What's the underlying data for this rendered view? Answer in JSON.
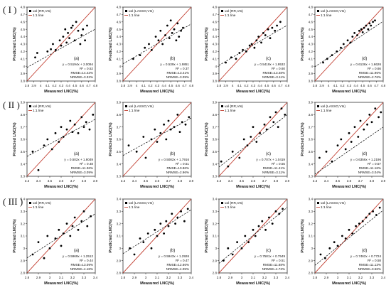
{
  "figure": {
    "row_labels": [
      "( I )",
      "( II )",
      "( III )"
    ],
    "common_axis": {
      "xlabel": "Measured LNC(%)",
      "ylabel": "Predicted LNC(%)"
    },
    "line_legend": "1:1 line",
    "colors": {
      "points": "#000000",
      "fit_line": "#000000",
      "one_to_one": "#c0392b",
      "frame": "#333333"
    }
  },
  "chart_data": [
    {
      "type": "scatter",
      "row": "I",
      "panel_label": "(a)",
      "legend": "val (RR,VIs)",
      "xlabel": "Measured LNC(%)",
      "ylabel": "Predicted LNC(%)",
      "xlim": [
        3.8,
        4.8
      ],
      "ylim": [
        3.8,
        4.8
      ],
      "xticks": [
        3.8,
        3.9,
        4,
        4.1,
        4.2,
        4.3,
        4.4,
        4.5,
        4.6,
        4.7,
        4.8
      ],
      "yticks": [
        3.8,
        3.9,
        4,
        4.1,
        4.2,
        4.3,
        4.4,
        4.5,
        4.6,
        4.7,
        4.8
      ],
      "equation": "y = 0.5194x + 2.0094",
      "r2": "R² = 0.52",
      "rmse": "RMSE=14.43%",
      "nrmse": "NRMSE=3.32%",
      "fit": {
        "slope": 0.5194,
        "intercept": 2.0094
      },
      "x": [
        3.92,
        3.95,
        4.1,
        4.15,
        4.18,
        4.22,
        4.28,
        4.3,
        4.33,
        4.36,
        4.38,
        4.4,
        4.42,
        4.45,
        4.47,
        4.5,
        4.52,
        4.55,
        4.58,
        4.6,
        4.62,
        4.65,
        4.68
      ],
      "y": [
        4.12,
        4.18,
        4.2,
        4.23,
        4.3,
        4.22,
        4.35,
        4.28,
        4.4,
        4.5,
        4.32,
        4.45,
        4.38,
        4.52,
        4.55,
        4.35,
        4.6,
        4.48,
        4.3,
        4.42,
        4.5,
        4.35,
        4.55
      ]
    },
    {
      "type": "scatter",
      "row": "I",
      "panel_label": "(b)",
      "legend": "val (LASSO,VIs)",
      "xlabel": "Measured LNC(%)",
      "ylabel": "Predicted LNC(%)",
      "xlim": [
        3.8,
        4.8
      ],
      "ylim": [
        3.8,
        4.8
      ],
      "xticks": [
        3.8,
        3.9,
        4,
        4.1,
        4.2,
        4.3,
        4.4,
        4.5,
        4.6,
        4.7,
        4.8
      ],
      "yticks": [
        3.8,
        3.9,
        4,
        4.1,
        4.2,
        4.3,
        4.4,
        4.5,
        4.6,
        4.7,
        4.8
      ],
      "equation": "y = 0.539x + 1.9851",
      "r2": "R² = 0.37",
      "rmse": "RMSE=13.41%",
      "nrmse": "NRMSE=3.09%",
      "fit": {
        "slope": 0.539,
        "intercept": 1.9851
      },
      "x": [
        3.95,
        4.05,
        4.12,
        4.18,
        4.22,
        4.28,
        4.32,
        4.35,
        4.38,
        4.42,
        4.45,
        4.48,
        4.5,
        4.52,
        4.55,
        4.58,
        4.6,
        4.62,
        4.65,
        4.68
      ],
      "y": [
        4.1,
        4.15,
        4.25,
        4.3,
        4.22,
        4.4,
        4.35,
        4.48,
        4.3,
        4.42,
        4.55,
        4.38,
        4.62,
        4.45,
        4.5,
        4.35,
        4.58,
        4.4,
        4.48,
        4.52
      ]
    },
    {
      "type": "scatter",
      "row": "I",
      "panel_label": "(c)",
      "legend": "val (RR,VIs)",
      "xlabel": "Measured LNC(%)",
      "ylabel": "Predicted LNC(%)",
      "xlim": [
        3.8,
        4.8
      ],
      "ylim": [
        3.8,
        4.8
      ],
      "xticks": [
        3.8,
        3.9,
        4,
        4.1,
        4.2,
        4.3,
        4.4,
        4.5,
        4.6,
        4.7,
        4.8
      ],
      "yticks": [
        3.8,
        3.9,
        4,
        4.1,
        4.2,
        4.3,
        4.4,
        4.5,
        4.6,
        4.7,
        4.8
      ],
      "equation": "y = 0.5419x + 1.9532",
      "r2": "R² = 0.60",
      "rmse": "RMSE=13.48%",
      "nrmse": "NRMSE=3.11%",
      "fit": {
        "slope": 0.5419,
        "intercept": 1.9532
      },
      "x": [
        3.9,
        3.98,
        4.05,
        4.1,
        4.15,
        4.2,
        4.25,
        4.28,
        4.32,
        4.35,
        4.38,
        4.42,
        4.45,
        4.48,
        4.52,
        4.55,
        4.58,
        4.62,
        4.65,
        4.7
      ],
      "y": [
        4.05,
        4.12,
        4.1,
        4.18,
        4.22,
        4.2,
        4.28,
        4.3,
        4.25,
        4.35,
        4.4,
        4.32,
        4.45,
        4.42,
        4.5,
        4.38,
        4.52,
        4.48,
        4.55,
        4.6
      ]
    },
    {
      "type": "scatter",
      "row": "I",
      "panel_label": "(d)",
      "legend": "val (LASSO,VIs)",
      "xlabel": "Measured LNC(%)",
      "ylabel": "Predicted LNC(%)",
      "xlim": [
        3.8,
        4.8
      ],
      "ylim": [
        3.8,
        4.8
      ],
      "xticks": [
        3.8,
        3.9,
        4,
        4.1,
        4.2,
        4.3,
        4.4,
        4.5,
        4.6,
        4.7,
        4.8
      ],
      "yticks": [
        3.8,
        3.9,
        4,
        4.1,
        4.2,
        4.3,
        4.4,
        4.5,
        4.6,
        4.7,
        4.8
      ],
      "equation": "y = 0.6136x + 1.6626",
      "r2": "R² = 0.66",
      "rmse": "RMSE=11.96%",
      "nrmse": "NRMSE=2.76%",
      "fit": {
        "slope": 0.6136,
        "intercept": 1.6626
      },
      "x": [
        3.92,
        3.98,
        4.05,
        4.12,
        4.18,
        4.22,
        4.28,
        4.32,
        4.35,
        4.38,
        4.42,
        4.45,
        4.48,
        4.5,
        4.52,
        4.55,
        4.58,
        4.6,
        4.62,
        4.65,
        4.68
      ],
      "y": [
        4.05,
        4.1,
        4.15,
        4.2,
        4.25,
        4.3,
        4.35,
        4.32,
        4.4,
        4.45,
        4.42,
        4.48,
        4.5,
        4.46,
        4.52,
        4.55,
        4.5,
        4.58,
        4.55,
        4.6,
        4.62
      ]
    },
    {
      "type": "scatter",
      "row": "II",
      "panel_label": "(a)",
      "legend": "val (RR,VIs)",
      "xlabel": "Measured LNC(%)",
      "ylabel": "Predicted LNC(%)",
      "xlim": [
        3.3,
        3.9
      ],
      "ylim": [
        3.3,
        3.9
      ],
      "xticks": [
        3.3,
        3.4,
        3.5,
        3.6,
        3.7,
        3.8,
        3.9
      ],
      "yticks": [
        3.3,
        3.4,
        3.5,
        3.6,
        3.7,
        3.8,
        3.9
      ],
      "equation": "y = 0.502x + 1.8049",
      "r2": "R² = 0.48",
      "rmse": "RMSE=11.36%",
      "nrmse": "NRMSE=3.09%",
      "fit": {
        "slope": 0.502,
        "intercept": 1.8049
      },
      "x": [
        3.35,
        3.4,
        3.45,
        3.48,
        3.52,
        3.55,
        3.58,
        3.6,
        3.62,
        3.65,
        3.68,
        3.7,
        3.72,
        3.75,
        3.78,
        3.8,
        3.82,
        3.85,
        3.88
      ],
      "y": [
        3.5,
        3.35,
        3.55,
        3.6,
        3.52,
        3.65,
        3.58,
        3.7,
        3.62,
        3.68,
        3.75,
        3.66,
        3.72,
        3.65,
        3.78,
        3.7,
        3.74,
        3.68,
        3.8
      ]
    },
    {
      "type": "scatter",
      "row": "II",
      "panel_label": "(b)",
      "legend": "val (LASSO,VIs)",
      "xlabel": "Measured LNC(%)",
      "ylabel": "Predicted LNC(%)",
      "xlim": [
        3.3,
        3.9
      ],
      "ylim": [
        3.3,
        3.9
      ],
      "xticks": [
        3.3,
        3.4,
        3.5,
        3.6,
        3.7,
        3.8,
        3.9
      ],
      "yticks": [
        3.3,
        3.4,
        3.5,
        3.6,
        3.7,
        3.8,
        3.9
      ],
      "equation": "y = 0.5082x + 1.7916",
      "r2": "R² = 0.51",
      "rmse": "RMSE=10.86%",
      "nrmse": "NRMSE=2.96%",
      "fit": {
        "slope": 0.5082,
        "intercept": 1.7916
      },
      "x": [
        3.35,
        3.42,
        3.48,
        3.5,
        3.55,
        3.58,
        3.6,
        3.63,
        3.66,
        3.68,
        3.7,
        3.72,
        3.75,
        3.78,
        3.8,
        3.82,
        3.85,
        3.88
      ],
      "y": [
        3.55,
        3.5,
        3.62,
        3.45,
        3.6,
        3.68,
        3.58,
        3.65,
        3.72,
        3.6,
        3.75,
        3.68,
        3.7,
        3.8,
        3.66,
        3.74,
        3.72,
        3.78
      ]
    },
    {
      "type": "scatter",
      "row": "II",
      "panel_label": "(c)",
      "legend": "val (RR,VIs)",
      "xlabel": "Measured LNC(%)",
      "ylabel": "Predicted LNC(%)",
      "xlim": [
        3.3,
        3.9
      ],
      "ylim": [
        3.3,
        3.9
      ],
      "xticks": [
        3.3,
        3.4,
        3.5,
        3.6,
        3.7,
        3.8,
        3.9
      ],
      "yticks": [
        3.3,
        3.4,
        3.5,
        3.6,
        3.7,
        3.8,
        3.9
      ],
      "equation": "y = 0.707x + 1.0419",
      "r2": "R² = 0.55",
      "rmse": "RMSE=11.41%",
      "nrmse": "NRMSE=3.11%",
      "fit": {
        "slope": 0.707,
        "intercept": 1.0419
      },
      "x": [
        3.32,
        3.38,
        3.42,
        3.48,
        3.52,
        3.55,
        3.58,
        3.6,
        3.63,
        3.66,
        3.7,
        3.72,
        3.75,
        3.78,
        3.8,
        3.82,
        3.85,
        3.88
      ],
      "y": [
        3.42,
        3.38,
        3.5,
        3.45,
        3.6,
        3.55,
        3.62,
        3.7,
        3.58,
        3.65,
        3.72,
        3.68,
        3.78,
        3.74,
        3.82,
        3.7,
        3.85,
        3.8
      ]
    },
    {
      "type": "scatter",
      "row": "II",
      "panel_label": "(d)",
      "legend": "val (LASSO,VIs)",
      "xlabel": "Measured LNC(%)",
      "ylabel": "Predicted LNC(%)",
      "xlim": [
        3.3,
        3.9
      ],
      "ylim": [
        3.3,
        3.9
      ],
      "xticks": [
        3.3,
        3.4,
        3.5,
        3.6,
        3.7,
        3.8,
        3.9
      ],
      "yticks": [
        3.3,
        3.4,
        3.5,
        3.6,
        3.7,
        3.8,
        3.9
      ],
      "equation": "y = 0.6356x + 1.2196",
      "r2": "R² = 0.57",
      "rmse": "RMSE=11.16%",
      "nrmse": "NRMSE=3.04%",
      "fit": {
        "slope": 0.6356,
        "intercept": 1.2196
      },
      "x": [
        3.34,
        3.4,
        3.45,
        3.5,
        3.53,
        3.57,
        3.6,
        3.62,
        3.65,
        3.68,
        3.7,
        3.73,
        3.76,
        3.78,
        3.8,
        3.83,
        3.86,
        3.88
      ],
      "y": [
        3.45,
        3.5,
        3.42,
        3.55,
        3.6,
        3.52,
        3.65,
        3.58,
        3.7,
        3.62,
        3.75,
        3.68,
        3.72,
        3.8,
        3.74,
        3.85,
        3.78,
        3.82
      ]
    },
    {
      "type": "scatter",
      "row": "III",
      "panel_label": "(a)",
      "legend": "val (RR,VIs)",
      "xlabel": "Measured LNC(%)",
      "ylabel": "Predicted LNC(%)",
      "xlim": [
        2.8,
        3.4
      ],
      "ylim": [
        2.8,
        3.4
      ],
      "xticks": [
        2.8,
        2.9,
        3,
        3.1,
        3.2,
        3.3,
        3.4
      ],
      "yticks": [
        2.8,
        2.9,
        3,
        3.1,
        3.2,
        3.3,
        3.4
      ],
      "equation": "y = 0.5969x + 1.2512",
      "r2": "R² = 0.44",
      "rmse": "RMSE=13.09%",
      "nrmse": "NRMSE=4.18%",
      "fit": {
        "slope": 0.5969,
        "intercept": 1.2512
      },
      "x": [
        2.85,
        2.9,
        2.95,
        2.98,
        3.0,
        3.05,
        3.08,
        3.1,
        3.12,
        3.15,
        3.18,
        3.2,
        3.22,
        3.25,
        3.28,
        3.3,
        3.33,
        3.36
      ],
      "y": [
        2.95,
        3.05,
        2.92,
        3.1,
        3.0,
        3.08,
        3.15,
        3.02,
        3.12,
        3.2,
        3.1,
        3.18,
        3.25,
        3.15,
        3.22,
        3.3,
        3.18,
        3.26
      ]
    },
    {
      "type": "scatter",
      "row": "III",
      "panel_label": "(b)",
      "legend": "val (LASSO,VIs)",
      "xlabel": "Measured LNC(%)",
      "ylabel": "Predicted LNC(%)",
      "xlim": [
        2.8,
        3.4
      ],
      "ylim": [
        2.8,
        3.4
      ],
      "xticks": [
        2.8,
        2.9,
        3,
        3.1,
        3.2,
        3.3,
        3.4
      ],
      "yticks": [
        2.8,
        2.9,
        3,
        3.1,
        3.2,
        3.3,
        3.4
      ],
      "equation": "y = 0.5943x + 1.2926",
      "r2": "R² = 0.47",
      "rmse": "RMSE=12.66%",
      "nrmse": "NRMSE=4.05%",
      "fit": {
        "slope": 0.5943,
        "intercept": 1.2926
      },
      "x": [
        2.86,
        2.9,
        2.95,
        2.98,
        3.02,
        3.05,
        3.08,
        3.1,
        3.13,
        3.16,
        3.18,
        3.2,
        3.23,
        3.26,
        3.28,
        3.31,
        3.34,
        3.37
      ],
      "y": [
        3.0,
        2.95,
        3.08,
        3.05,
        3.12,
        3.0,
        3.15,
        3.1,
        3.2,
        3.12,
        3.22,
        3.18,
        3.28,
        3.2,
        3.25,
        3.3,
        3.22,
        3.32
      ]
    },
    {
      "type": "scatter",
      "row": "III",
      "panel_label": "(c)",
      "legend": "val (RR,VIs)",
      "xlabel": "Measured LNC(%)",
      "ylabel": "Predicted LNC(%)",
      "xlim": [
        2.8,
        3.4
      ],
      "ylim": [
        2.8,
        3.4
      ],
      "xticks": [
        2.8,
        2.9,
        3,
        3.1,
        3.2,
        3.3,
        3.4
      ],
      "yticks": [
        2.8,
        2.9,
        3,
        3.1,
        3.2,
        3.3,
        3.4
      ],
      "equation": "y = 0.7581x + 0.7549",
      "r2": "R² = 0.51",
      "rmse": "RMSE=11.68%",
      "nrmse": "NRMSE=4.73%",
      "fit": {
        "slope": 0.7581,
        "intercept": 0.7549
      },
      "x": [
        2.84,
        2.88,
        2.92,
        2.96,
        3.0,
        3.03,
        3.06,
        3.1,
        3.12,
        3.15,
        3.18,
        3.21,
        3.24,
        3.27,
        3.3,
        3.33,
        3.36
      ],
      "y": [
        2.9,
        3.0,
        2.95,
        3.05,
        3.0,
        3.1,
        3.05,
        3.15,
        3.1,
        3.18,
        3.22,
        3.15,
        3.25,
        3.2,
        3.3,
        3.28,
        3.32
      ]
    },
    {
      "type": "scatter",
      "row": "III",
      "panel_label": "(d)",
      "legend": "val (LASSO,VIs)",
      "xlabel": "Measured LNC(%)",
      "ylabel": "Predicted LNC(%)",
      "xlim": [
        2.8,
        3.4
      ],
      "ylim": [
        2.8,
        3.4
      ],
      "xticks": [
        2.8,
        2.9,
        3,
        3.1,
        3.2,
        3.3,
        3.4
      ],
      "yticks": [
        2.8,
        2.9,
        3,
        3.1,
        3.2,
        3.3,
        3.4
      ],
      "equation": "y = 0.7462x + 0.7724",
      "r2": "R² = 0.58",
      "rmse": "RMSE=11.13%",
      "nrmse": "NRMSE=3.56%",
      "fit": {
        "slope": 0.7462,
        "intercept": 0.7724
      },
      "x": [
        2.85,
        2.89,
        2.93,
        2.97,
        3.0,
        3.04,
        3.07,
        3.1,
        3.13,
        3.16,
        3.19,
        3.22,
        3.25,
        3.28,
        3.31,
        3.34,
        3.37
      ],
      "y": [
        2.95,
        2.92,
        3.0,
        3.05,
        3.02,
        3.1,
        3.08,
        3.15,
        3.12,
        3.18,
        3.2,
        3.22,
        3.25,
        3.28,
        3.3,
        3.27,
        3.33
      ]
    }
  ]
}
